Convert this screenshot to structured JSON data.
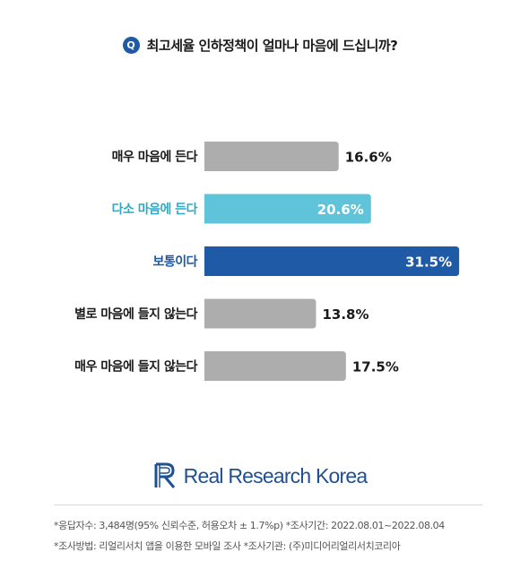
{
  "question": {
    "badge": "Q",
    "text": "최고세율 인하정책이 얼마나 마음에 드십니까?"
  },
  "chart_data": {
    "type": "bar",
    "orientation": "horizontal",
    "categories": [
      "매우 마음에 든다",
      "다소 마음에 든다",
      "보통이다",
      "별로 마음에 들지 않는다",
      "매우 마음에 들지 않는다"
    ],
    "values": [
      16.6,
      20.6,
      31.5,
      13.8,
      17.5
    ],
    "value_labels": [
      "16.6%",
      "20.6%",
      "31.5%",
      "13.8%",
      "17.5%"
    ],
    "bar_colors": [
      "#adadad",
      "#5fc4da",
      "#1f5aa6",
      "#adadad",
      "#adadad"
    ],
    "label_colors": [
      "#1a1a1a",
      "#2fa9c6",
      "#1f5aa6",
      "#1a1a1a",
      "#1a1a1a"
    ],
    "value_inside": [
      false,
      true,
      true,
      false,
      false
    ]
  },
  "brand": {
    "name": "Real Research Korea",
    "color": "#1f4f94"
  },
  "footnotes": [
    "*응답자수: 3,484명(95% 신뢰수준, 허용오차 ± 1.7%p)  *조사기간: 2022.08.01~2022.08.04",
    "*조사방법: 리얼리서치 앱을 이용한 모바일 조사  *조사기관: (주)미디어리얼리서치코리아"
  ]
}
